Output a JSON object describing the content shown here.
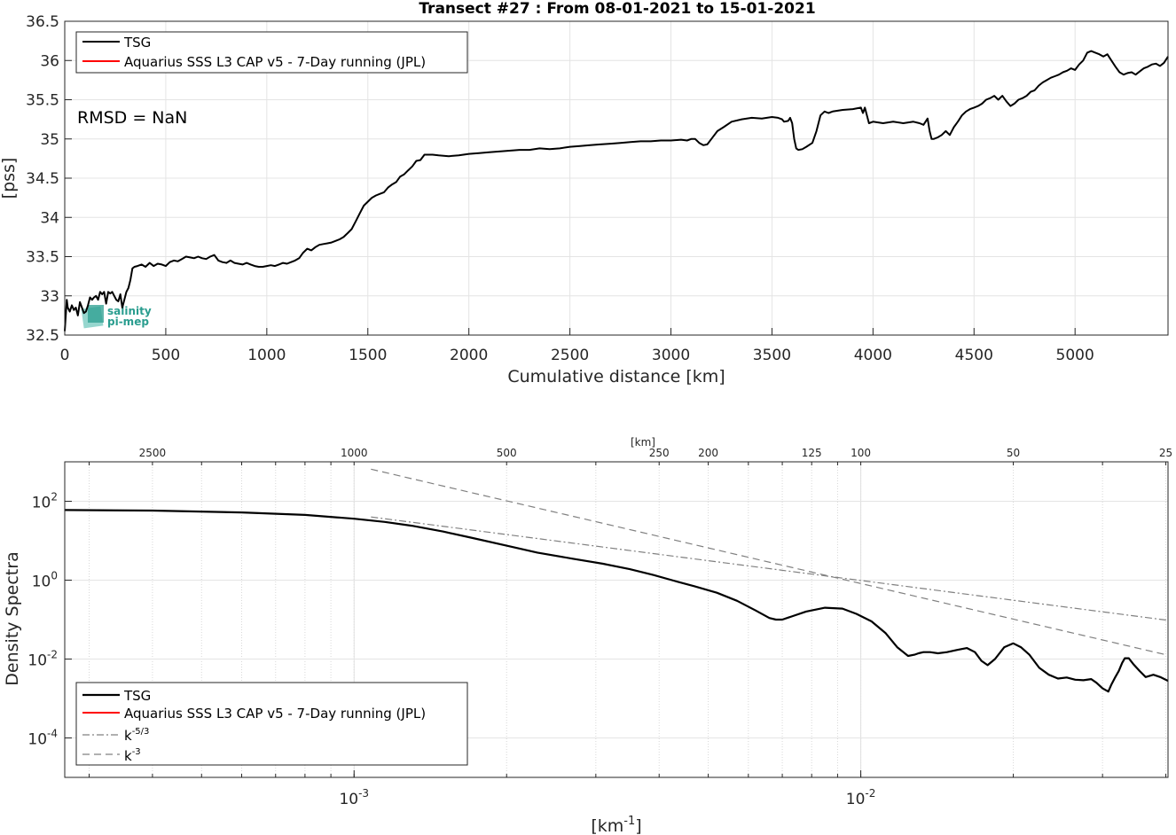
{
  "figure_title": "Transect #27 : From 08-01-2021 to 15-01-2021",
  "chart_data": [
    {
      "type": "line",
      "title": "Transect #27 : From 08-01-2021 to 15-01-2021",
      "xlabel": "Cumulative distance [km]",
      "ylabel": "[pss]",
      "xlim": [
        0,
        5460
      ],
      "ylim": [
        32.5,
        36.5
      ],
      "xticks": [
        0,
        500,
        1000,
        1500,
        2000,
        2500,
        3000,
        3500,
        4000,
        4500,
        5000
      ],
      "yticks": [
        32.5,
        33,
        33.5,
        34,
        34.5,
        35,
        35.5,
        36,
        36.5
      ],
      "xtick_labels": [
        "0",
        "500",
        "1000",
        "1500",
        "2000",
        "2500",
        "3000",
        "3500",
        "4000",
        "4500",
        "5000"
      ],
      "ytick_labels": [
        "32.5",
        "33",
        "33.5",
        "34",
        "34.5",
        "35",
        "35.5",
        "36",
        "36.5"
      ],
      "grid": true,
      "legend_position": "top-left",
      "annotation": "RMSD = NaN",
      "logo_lines": [
        "salinity",
        "pi-mep"
      ],
      "series": [
        {
          "name": "TSG",
          "color": "#000000",
          "x": [
            0,
            10,
            15,
            25,
            35,
            45,
            55,
            65,
            75,
            85,
            95,
            105,
            115,
            125,
            135,
            145,
            155,
            165,
            175,
            185,
            195,
            205,
            215,
            225,
            235,
            245,
            255,
            265,
            275,
            285,
            295,
            305,
            315,
            325,
            335,
            345,
            360,
            380,
            400,
            420,
            440,
            460,
            480,
            500,
            520,
            540,
            560,
            580,
            600,
            620,
            640,
            660,
            680,
            700,
            720,
            740,
            760,
            780,
            800,
            820,
            840,
            860,
            880,
            900,
            920,
            940,
            960,
            980,
            1000,
            1020,
            1040,
            1060,
            1080,
            1100,
            1120,
            1140,
            1160,
            1180,
            1200,
            1220,
            1240,
            1260,
            1280,
            1300,
            1320,
            1340,
            1360,
            1380,
            1400,
            1420,
            1440,
            1460,
            1480,
            1500,
            1520,
            1540,
            1560,
            1580,
            1600,
            1620,
            1640,
            1660,
            1680,
            1700,
            1720,
            1740,
            1760,
            1780,
            1800,
            1820,
            1850,
            1900,
            1950,
            2000,
            2050,
            2100,
            2150,
            2200,
            2250,
            2300,
            2350,
            2400,
            2450,
            2500,
            2550,
            2600,
            2650,
            2700,
            2750,
            2800,
            2850,
            2900,
            2950,
            3000,
            3050,
            3080,
            3100,
            3120,
            3140,
            3160,
            3180,
            3200,
            3230,
            3260,
            3300,
            3350,
            3400,
            3450,
            3500,
            3530,
            3550,
            3560,
            3580,
            3590,
            3600,
            3610,
            3620,
            3630,
            3650,
            3670,
            3700,
            3720,
            3740,
            3760,
            3780,
            3800,
            3850,
            3900,
            3940,
            3950,
            3960,
            3980,
            4000,
            4050,
            4100,
            4150,
            4200,
            4230,
            4250,
            4270,
            4280,
            4290,
            4300,
            4320,
            4340,
            4360,
            4380,
            4400,
            4420,
            4440,
            4460,
            4480,
            4500,
            4520,
            4540,
            4560,
            4580,
            4600,
            4620,
            4640,
            4660,
            4680,
            4700,
            4720,
            4740,
            4760,
            4780,
            4800,
            4820,
            4840,
            4860,
            4880,
            4900,
            4920,
            4940,
            4960,
            4980,
            5000,
            5020,
            5040,
            5060,
            5080,
            5100,
            5120,
            5140,
            5160,
            5180,
            5200,
            5220,
            5240,
            5260,
            5280,
            5300,
            5320,
            5340,
            5360,
            5380,
            5400,
            5420,
            5440,
            5460
          ],
          "y": [
            32.55,
            32.95,
            32.85,
            32.8,
            32.88,
            32.82,
            32.85,
            32.75,
            32.92,
            32.85,
            32.78,
            32.8,
            32.88,
            32.98,
            32.95,
            32.98,
            33.0,
            32.95,
            33.05,
            33.02,
            33.05,
            32.9,
            33.05,
            33.03,
            33.05,
            33.0,
            32.95,
            32.93,
            33.02,
            32.85,
            32.95,
            33.05,
            33.1,
            33.2,
            33.35,
            33.37,
            33.38,
            33.4,
            33.37,
            33.42,
            33.38,
            33.41,
            33.4,
            33.38,
            33.43,
            33.45,
            33.44,
            33.47,
            33.5,
            33.49,
            33.48,
            33.5,
            33.48,
            33.47,
            33.5,
            33.52,
            33.45,
            33.43,
            33.42,
            33.45,
            33.42,
            33.41,
            33.4,
            33.42,
            33.4,
            33.38,
            33.37,
            33.37,
            33.38,
            33.39,
            33.38,
            33.4,
            33.42,
            33.41,
            33.43,
            33.45,
            33.48,
            33.55,
            33.6,
            33.58,
            33.62,
            33.65,
            33.66,
            33.67,
            33.68,
            33.7,
            33.72,
            33.75,
            33.8,
            33.85,
            33.95,
            34.05,
            34.15,
            34.2,
            34.25,
            34.28,
            34.3,
            34.32,
            34.38,
            34.42,
            34.45,
            34.52,
            34.55,
            34.6,
            34.65,
            34.72,
            34.73,
            34.8,
            34.8,
            34.8,
            34.79,
            34.78,
            34.79,
            34.81,
            34.82,
            34.83,
            34.84,
            34.85,
            34.86,
            34.86,
            34.88,
            34.87,
            34.88,
            34.9,
            34.91,
            34.92,
            34.93,
            34.94,
            34.95,
            34.96,
            34.97,
            34.97,
            34.98,
            34.98,
            34.99,
            34.98,
            35.0,
            35.0,
            34.95,
            34.92,
            34.93,
            35.0,
            35.1,
            35.15,
            35.22,
            35.25,
            35.27,
            35.26,
            35.28,
            35.27,
            35.25,
            35.22,
            35.23,
            35.27,
            35.2,
            35.0,
            34.88,
            34.86,
            34.87,
            34.9,
            34.95,
            35.1,
            35.3,
            35.35,
            35.33,
            35.35,
            35.37,
            35.38,
            35.4,
            35.33,
            35.4,
            35.2,
            35.22,
            35.2,
            35.22,
            35.2,
            35.22,
            35.2,
            35.18,
            35.26,
            35.1,
            35.0,
            35.0,
            35.02,
            35.05,
            35.1,
            35.05,
            35.15,
            35.22,
            35.3,
            35.35,
            35.38,
            35.4,
            35.42,
            35.45,
            35.5,
            35.52,
            35.55,
            35.5,
            35.55,
            35.48,
            35.42,
            35.45,
            35.5,
            35.52,
            35.55,
            35.6,
            35.62,
            35.68,
            35.72,
            35.75,
            35.78,
            35.8,
            35.82,
            35.85,
            35.87,
            35.9,
            35.88,
            35.95,
            36.0,
            36.1,
            36.12,
            36.1,
            36.08,
            36.05,
            36.08,
            36.0,
            35.92,
            35.85,
            35.82,
            35.84,
            35.85,
            35.82,
            35.86,
            35.9,
            35.92,
            35.95,
            35.96,
            35.93,
            35.97,
            36.05
          ]
        },
        {
          "name": "Aquarius SSS L3 CAP v5 - 7-Day running (JPL)",
          "color": "#ff0000",
          "x": [],
          "y": []
        }
      ]
    },
    {
      "type": "line",
      "xlabel": "[km⁻¹]",
      "ylabel": "Density Spectra",
      "top_axis_label": "[km]",
      "xscale": "log",
      "yscale": "log",
      "xlim": [
        0.0002685,
        0.0404
      ],
      "ylim": [
        1e-05,
        1000
      ],
      "xtick_labels": [
        "10-3",
        "10-2"
      ],
      "ytick_labels": [
        "10-4",
        "10-2",
        "100",
        "102"
      ],
      "top_ticks_km": [
        2500,
        1000,
        500,
        250,
        200,
        125,
        100,
        50,
        25
      ],
      "top_tick_labels": [
        "2500",
        "1000",
        "500",
        "250",
        "200",
        "125",
        "100",
        "50",
        "25"
      ],
      "grid": true,
      "legend_position": "bottom-left",
      "series": [
        {
          "name": "TSG",
          "color": "#000000",
          "x": [
            0.000269,
            0.0004,
            0.0006,
            0.0008,
            0.00095,
            0.001,
            0.00115,
            0.0013,
            0.0015,
            0.0017,
            0.002,
            0.0023,
            0.0027,
            0.0031,
            0.0035,
            0.0039,
            0.0043,
            0.0047,
            0.0052,
            0.0057,
            0.0062,
            0.0066,
            0.0068,
            0.007,
            0.0073,
            0.0078,
            0.0085,
            0.0092,
            0.0098,
            0.0105,
            0.0112,
            0.0118,
            0.0124,
            0.0128,
            0.013,
            0.0133,
            0.0137,
            0.0142,
            0.0148,
            0.0155,
            0.0162,
            0.0168,
            0.0173,
            0.0178,
            0.0184,
            0.0192,
            0.02,
            0.0207,
            0.0215,
            0.0225,
            0.0235,
            0.0245,
            0.0255,
            0.0265,
            0.0275,
            0.0285,
            0.0292,
            0.03,
            0.0308,
            0.0312,
            0.0318,
            0.0323,
            0.0328,
            0.0332,
            0.0338,
            0.0345,
            0.0355,
            0.0365,
            0.0378,
            0.039,
            0.0404
          ],
          "y": [
            60,
            58,
            52,
            45,
            38,
            36,
            30,
            24,
            17,
            12,
            7.5,
            5,
            3.5,
            2.6,
            1.9,
            1.35,
            0.95,
            0.7,
            0.48,
            0.3,
            0.17,
            0.11,
            0.1,
            0.1,
            0.12,
            0.16,
            0.2,
            0.19,
            0.14,
            0.09,
            0.045,
            0.02,
            0.012,
            0.013,
            0.014,
            0.015,
            0.015,
            0.014,
            0.015,
            0.017,
            0.019,
            0.015,
            0.009,
            0.007,
            0.01,
            0.02,
            0.025,
            0.02,
            0.013,
            0.006,
            0.004,
            0.0032,
            0.0034,
            0.003,
            0.0029,
            0.0031,
            0.0025,
            0.0018,
            0.0015,
            0.0022,
            0.0035,
            0.005,
            0.008,
            0.0105,
            0.0105,
            0.0075,
            0.005,
            0.0035,
            0.004,
            0.0035,
            0.0028
          ]
        },
        {
          "name": "Aquarius SSS L3 CAP v5 - 7-Day running (JPL)",
          "color": "#ff0000",
          "x": [],
          "y": []
        },
        {
          "name": "k-5/3",
          "legend_main": "k",
          "legend_sup": "-5/3",
          "color": "#808080",
          "dash": "dashdot",
          "x": [
            0.00108,
            0.0404
          ],
          "y": [
            40.1,
            0.0957
          ]
        },
        {
          "name": "k-3",
          "legend_main": "k",
          "legend_sup": "-3",
          "color": "#808080",
          "dash": "dashed",
          "x": [
            0.00108,
            0.0404
          ],
          "y": [
            652,
            0.0125
          ]
        }
      ]
    }
  ]
}
